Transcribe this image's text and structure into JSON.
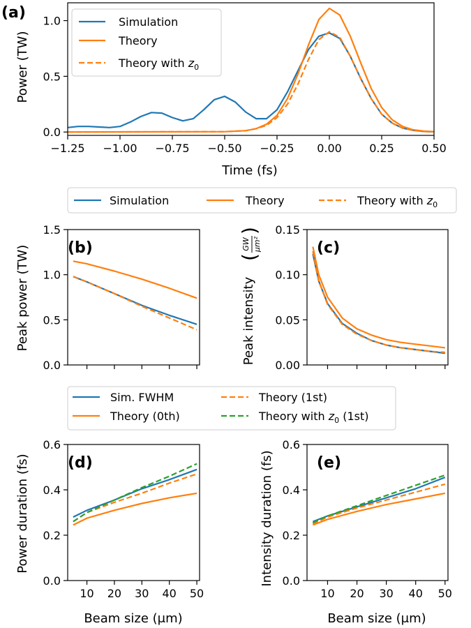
{
  "colors": {
    "simulation": "#1f77b4",
    "theory": "#ff7f0e",
    "theory_z0_1st": "#2ca02c"
  },
  "legends": {
    "top": [
      "Simulation",
      "Theory",
      "Theory with z0"
    ],
    "mid": [
      "Simulation",
      "Theory",
      "Theory with z0"
    ],
    "bottom": [
      "Sim. FWHM",
      "Theory (0th)",
      "Theory (1st)",
      "Theory with z0 (1st)"
    ]
  },
  "chart_data": [
    {
      "id": "a",
      "panel_label": "(a)",
      "type": "line",
      "xlabel": "Time (fs)",
      "ylabel": "Power (TW)",
      "xlim": [
        -1.25,
        0.5
      ],
      "ylim": [
        -0.03,
        1.16
      ],
      "xticks": [
        -1.25,
        -1.0,
        -0.75,
        -0.5,
        -0.25,
        0.0,
        0.25,
        0.5
      ],
      "xtick_labels": [
        "−1.25",
        "−1.00",
        "−0.75",
        "−0.50",
        "−0.25",
        "0.00",
        "0.25",
        "0.50"
      ],
      "yticks": [
        0.0,
        0.5,
        1.0
      ],
      "ytick_labels": [
        "0.0",
        "0.5",
        "1.0"
      ],
      "series": [
        {
          "name": "Simulation",
          "style": "solid",
          "color": "#1f77b4",
          "x": [
            -1.25,
            -1.2,
            -1.15,
            -1.1,
            -1.05,
            -1.0,
            -0.95,
            -0.9,
            -0.85,
            -0.8,
            -0.75,
            -0.7,
            -0.65,
            -0.6,
            -0.55,
            -0.5,
            -0.45,
            -0.4,
            -0.35,
            -0.3,
            -0.25,
            -0.2,
            -0.15,
            -0.1,
            -0.05,
            0.0,
            0.05,
            0.1,
            0.15,
            0.2,
            0.25,
            0.3,
            0.35,
            0.4,
            0.45,
            0.5
          ],
          "y": [
            0.04,
            0.05,
            0.05,
            0.045,
            0.04,
            0.05,
            0.09,
            0.14,
            0.175,
            0.17,
            0.13,
            0.1,
            0.12,
            0.2,
            0.29,
            0.32,
            0.27,
            0.18,
            0.12,
            0.12,
            0.2,
            0.36,
            0.55,
            0.74,
            0.86,
            0.89,
            0.84,
            0.68,
            0.48,
            0.3,
            0.16,
            0.08,
            0.035,
            0.015,
            0.005,
            0.002
          ]
        },
        {
          "name": "Theory",
          "style": "solid",
          "color": "#ff7f0e",
          "x": [
            -1.25,
            -0.5,
            -0.4,
            -0.35,
            -0.3,
            -0.25,
            -0.2,
            -0.15,
            -0.1,
            -0.05,
            0.0,
            0.05,
            0.1,
            0.15,
            0.2,
            0.25,
            0.3,
            0.35,
            0.4,
            0.45,
            0.5
          ],
          "y": [
            0.0,
            0.003,
            0.012,
            0.03,
            0.07,
            0.15,
            0.3,
            0.52,
            0.78,
            1.01,
            1.11,
            1.05,
            0.86,
            0.62,
            0.39,
            0.22,
            0.11,
            0.05,
            0.02,
            0.008,
            0.003
          ]
        },
        {
          "name": "Theory with z0",
          "style": "dashed",
          "color": "#ff7f0e",
          "x": [
            -1.25,
            -0.5,
            -0.4,
            -0.35,
            -0.3,
            -0.25,
            -0.2,
            -0.15,
            -0.1,
            -0.05,
            0.0,
            0.05,
            0.1,
            0.15,
            0.2,
            0.25,
            0.3,
            0.35,
            0.4,
            0.45,
            0.5
          ],
          "y": [
            0.0,
            0.003,
            0.012,
            0.03,
            0.06,
            0.13,
            0.25,
            0.43,
            0.65,
            0.83,
            0.9,
            0.85,
            0.68,
            0.48,
            0.3,
            0.16,
            0.08,
            0.035,
            0.015,
            0.005,
            0.002
          ]
        }
      ]
    },
    {
      "id": "b",
      "panel_label": "(b)",
      "type": "line",
      "xlabel": "",
      "ylabel": "Peak power (TW)",
      "xlim": [
        3,
        51
      ],
      "ylim": [
        0.0,
        1.5
      ],
      "xticks": [
        10,
        20,
        30,
        40,
        50
      ],
      "xtick_labels": [],
      "yticks": [
        0.0,
        0.5,
        1.0,
        1.5
      ],
      "ytick_labels": [
        "0.0",
        "0.5",
        "1.0",
        "1.5"
      ],
      "series": [
        {
          "name": "Simulation",
          "style": "solid",
          "color": "#1f77b4",
          "x": [
            5,
            10,
            20,
            30,
            40,
            50
          ],
          "y": [
            0.98,
            0.92,
            0.79,
            0.66,
            0.55,
            0.45
          ]
        },
        {
          "name": "Theory",
          "style": "solid",
          "color": "#ff7f0e",
          "x": [
            5,
            10,
            20,
            30,
            40,
            50
          ],
          "y": [
            1.15,
            1.12,
            1.04,
            0.95,
            0.85,
            0.74
          ]
        },
        {
          "name": "Theory with z0",
          "style": "dashed",
          "color": "#ff7f0e",
          "x": [
            5,
            10,
            20,
            30,
            40,
            50
          ],
          "y": [
            0.98,
            0.92,
            0.79,
            0.65,
            0.52,
            0.39
          ]
        }
      ]
    },
    {
      "id": "c",
      "panel_label": "(c)",
      "type": "line",
      "xlabel": "",
      "ylabel": "Peak intensity",
      "ylabel_unit_num": "GW",
      "ylabel_unit_den": "μm²",
      "xlim": [
        3,
        51
      ],
      "ylim": [
        0.0,
        0.15
      ],
      "xticks": [
        10,
        20,
        30,
        40,
        50
      ],
      "xtick_labels": [],
      "yticks": [
        0.0,
        0.05,
        0.1,
        0.15
      ],
      "ytick_labels": [
        "0.00",
        "0.05",
        "0.10",
        "0.15"
      ],
      "series": [
        {
          "name": "Simulation",
          "style": "solid",
          "color": "#1f77b4",
          "x": [
            5,
            7,
            10,
            15,
            20,
            25,
            30,
            35,
            40,
            45,
            50
          ],
          "y": [
            0.123,
            0.093,
            0.068,
            0.046,
            0.035,
            0.027,
            0.022,
            0.019,
            0.017,
            0.015,
            0.013
          ]
        },
        {
          "name": "Theory",
          "style": "solid",
          "color": "#ff7f0e",
          "x": [
            5,
            7,
            10,
            15,
            20,
            25,
            30,
            35,
            40,
            45,
            50
          ],
          "y": [
            0.131,
            0.1,
            0.075,
            0.052,
            0.04,
            0.033,
            0.028,
            0.025,
            0.023,
            0.021,
            0.019
          ]
        },
        {
          "name": "Theory with z0",
          "style": "dashed",
          "color": "#ff7f0e",
          "x": [
            5,
            7,
            10,
            15,
            20,
            25,
            30,
            35,
            40,
            45,
            50
          ],
          "y": [
            0.126,
            0.093,
            0.067,
            0.045,
            0.034,
            0.027,
            0.022,
            0.019,
            0.017,
            0.015,
            0.014
          ]
        }
      ]
    },
    {
      "id": "d",
      "panel_label": "(d)",
      "type": "line",
      "xlabel": "Beam size (μm)",
      "ylabel": "Power duration (fs)",
      "xlim": [
        3,
        51
      ],
      "ylim": [
        0.0,
        0.6
      ],
      "xticks": [
        10,
        20,
        30,
        40,
        50
      ],
      "xtick_labels": [
        "10",
        "20",
        "30",
        "40",
        "50"
      ],
      "yticks": [
        0.0,
        0.2,
        0.4,
        0.6
      ],
      "ytick_labels": [
        "0.0",
        "0.2",
        "0.4",
        "0.6"
      ],
      "series": [
        {
          "name": "Sim. FWHM",
          "style": "solid",
          "color": "#1f77b4",
          "x": [
            5,
            10,
            20,
            30,
            40,
            50
          ],
          "y": [
            0.28,
            0.31,
            0.355,
            0.405,
            0.445,
            0.49
          ]
        },
        {
          "name": "Theory (0th)",
          "style": "solid",
          "color": "#ff7f0e",
          "x": [
            5,
            10,
            20,
            30,
            40,
            50
          ],
          "y": [
            0.245,
            0.275,
            0.31,
            0.34,
            0.365,
            0.385
          ]
        },
        {
          "name": "Theory (1st)",
          "style": "dashed",
          "color": "#ff7f0e",
          "x": [
            5,
            10,
            20,
            30,
            40,
            50
          ],
          "y": [
            0.26,
            0.3,
            0.345,
            0.385,
            0.43,
            0.47
          ]
        },
        {
          "name": "Theory with z0 (1st)",
          "style": "dashed",
          "color": "#2ca02c",
          "x": [
            5,
            10,
            20,
            30,
            40,
            50
          ],
          "y": [
            0.26,
            0.3,
            0.355,
            0.41,
            0.46,
            0.515
          ]
        }
      ]
    },
    {
      "id": "e",
      "panel_label": "(e)",
      "type": "line",
      "xlabel": "Beam size (μm)",
      "ylabel": "Intensity duration (fs)",
      "xlim": [
        3,
        51
      ],
      "ylim": [
        0.0,
        0.6
      ],
      "xticks": [
        10,
        20,
        30,
        40,
        50
      ],
      "xtick_labels": [
        "10",
        "20",
        "30",
        "40",
        "50"
      ],
      "yticks": [
        0.0,
        0.2,
        0.4,
        0.6
      ],
      "ytick_labels": [
        "0.0",
        "0.2",
        "0.4",
        "0.6"
      ],
      "series": [
        {
          "name": "Sim. FWHM",
          "style": "solid",
          "color": "#1f77b4",
          "x": [
            5,
            10,
            20,
            30,
            40,
            50
          ],
          "y": [
            0.26,
            0.285,
            0.325,
            0.365,
            0.405,
            0.455
          ]
        },
        {
          "name": "Theory (0th)",
          "style": "solid",
          "color": "#ff7f0e",
          "x": [
            5,
            10,
            20,
            30,
            40,
            50
          ],
          "y": [
            0.245,
            0.27,
            0.305,
            0.335,
            0.36,
            0.385
          ]
        },
        {
          "name": "Theory (1st)",
          "style": "dashed",
          "color": "#ff7f0e",
          "x": [
            5,
            10,
            20,
            30,
            40,
            50
          ],
          "y": [
            0.25,
            0.28,
            0.32,
            0.355,
            0.39,
            0.425
          ]
        },
        {
          "name": "Theory with z0 (1st)",
          "style": "dashed",
          "color": "#2ca02c",
          "x": [
            5,
            10,
            20,
            30,
            40,
            50
          ],
          "y": [
            0.255,
            0.285,
            0.33,
            0.375,
            0.42,
            0.465
          ]
        }
      ]
    }
  ]
}
